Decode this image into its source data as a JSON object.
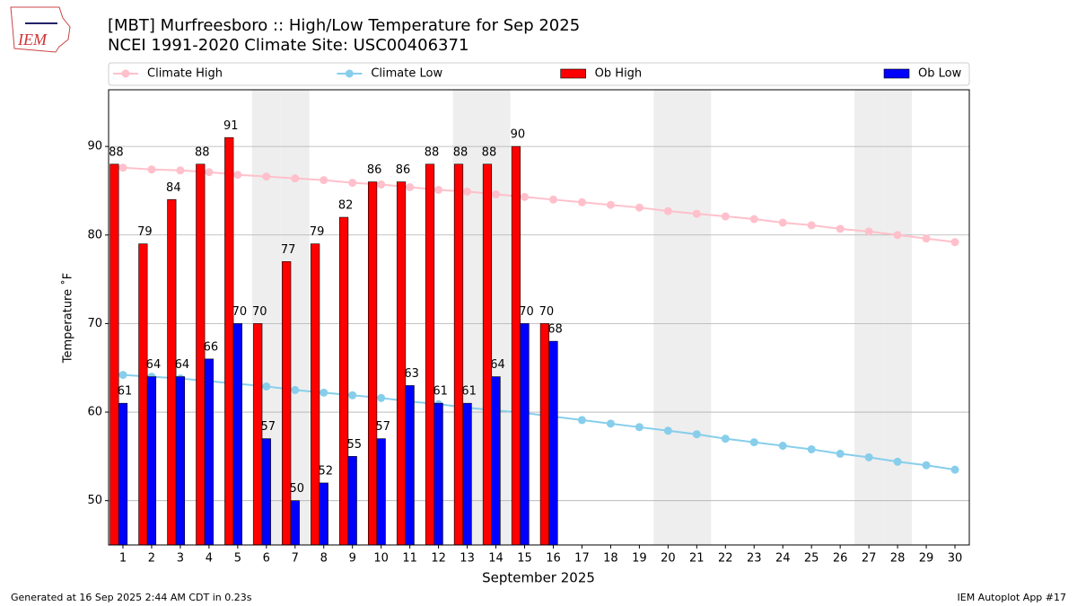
{
  "chart_data": {
    "type": "bar",
    "title": "[MBT] Murfreesboro :: High/Low Temperature for Sep 2025",
    "subtitle": "NCEI 1991-2020 Climate Site: USC00406371",
    "logo_text": "IEM",
    "xlabel": "September 2025",
    "ylabel": "Temperature ˚F",
    "footer_left": "Generated at 16 Sep 2025 2:44 AM CDT in 0.23s",
    "footer_right": "IEM Autoplot App #17",
    "x": [
      1,
      2,
      3,
      4,
      5,
      6,
      7,
      8,
      9,
      10,
      11,
      12,
      13,
      14,
      15,
      16,
      17,
      18,
      19,
      20,
      21,
      22,
      23,
      24,
      25,
      26,
      27,
      28,
      29,
      30
    ],
    "xlim": [
      0.5,
      30.5
    ],
    "xticks": [
      1,
      2,
      3,
      4,
      5,
      6,
      7,
      8,
      9,
      10,
      11,
      12,
      13,
      14,
      15,
      16,
      17,
      18,
      19,
      20,
      21,
      22,
      23,
      24,
      25,
      26,
      27,
      28,
      29,
      30
    ],
    "ylim": [
      45,
      96.4
    ],
    "yticks": [
      50,
      60,
      70,
      80,
      90
    ],
    "grid": true,
    "shaded_days": [
      6,
      7,
      13,
      14,
      20,
      21,
      27,
      28
    ],
    "series": [
      {
        "name": "Climate High",
        "type": "line",
        "color": "#ffc0cb",
        "values": [
          87.6,
          87.4,
          87.3,
          87.1,
          86.8,
          86.6,
          86.4,
          86.2,
          85.9,
          85.7,
          85.4,
          85.1,
          84.9,
          84.6,
          84.3,
          84.0,
          83.7,
          83.4,
          83.1,
          82.7,
          82.4,
          82.1,
          81.8,
          81.4,
          81.1,
          80.7,
          80.4,
          80.0,
          79.6,
          79.2
        ]
      },
      {
        "name": "Climate Low",
        "type": "line",
        "color": "#87ceeb",
        "values": [
          64.2,
          64.0,
          63.8,
          63.5,
          63.2,
          62.9,
          62.5,
          62.2,
          61.9,
          61.6,
          61.2,
          60.9,
          60.5,
          60.2,
          59.9,
          59.5,
          59.1,
          58.7,
          58.3,
          57.9,
          57.5,
          57.0,
          56.6,
          56.2,
          55.8,
          55.3,
          54.9,
          54.4,
          54.0,
          53.5
        ]
      },
      {
        "name": "Ob High",
        "type": "bar",
        "color": "#ff0000",
        "values": [
          88,
          79,
          84,
          88,
          91,
          70,
          77,
          79,
          82,
          86,
          86,
          88,
          88,
          88,
          90,
          70,
          null,
          null,
          null,
          null,
          null,
          null,
          null,
          null,
          null,
          null,
          null,
          null,
          null,
          null
        ]
      },
      {
        "name": "Ob Low",
        "type": "bar",
        "color": "#0000ff",
        "values": [
          61,
          64,
          64,
          66,
          70,
          57,
          50,
          52,
          55,
          57,
          63,
          61,
          61,
          64,
          70,
          68,
          null,
          null,
          null,
          null,
          null,
          null,
          null,
          null,
          null,
          null,
          null,
          null,
          null,
          null
        ]
      }
    ]
  }
}
